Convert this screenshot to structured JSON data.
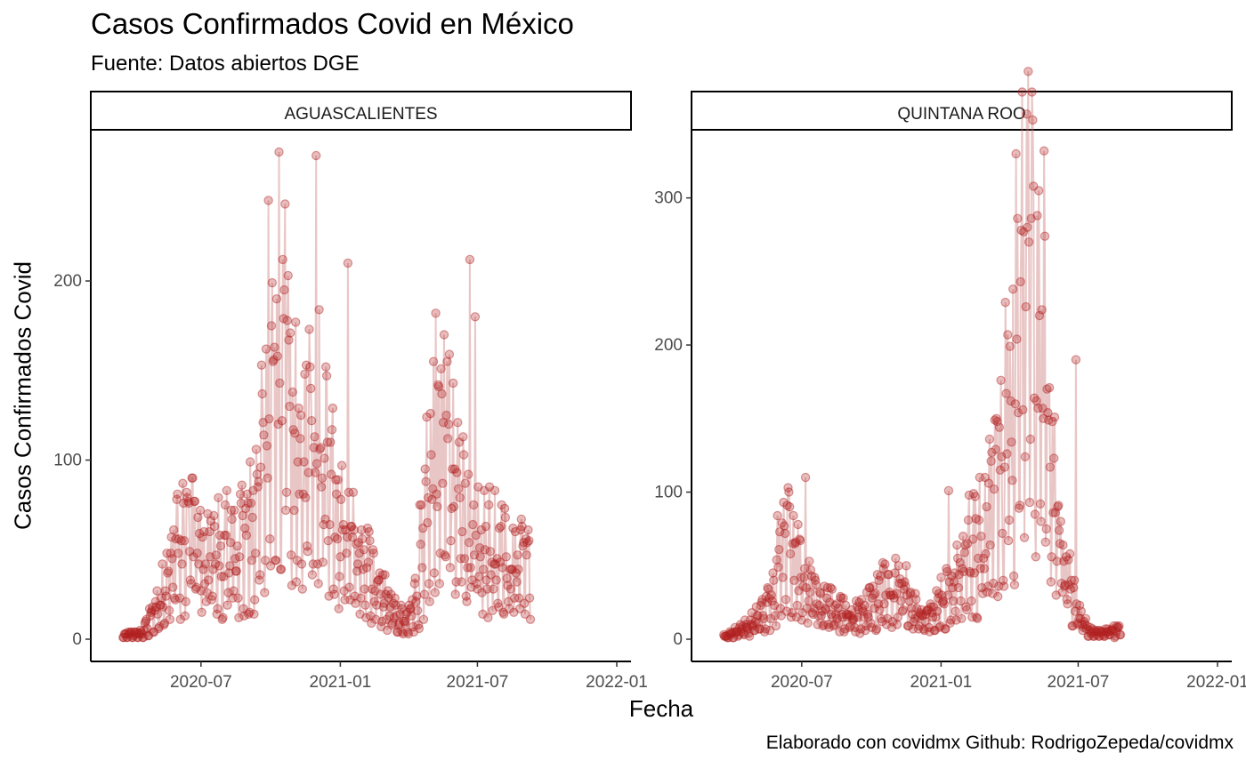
{
  "chart_data": {
    "type": "scatter",
    "title": "Casos Confirmados Covid en México",
    "subtitle": "Fuente: Datos abiertos DGE",
    "xlabel": "Fecha",
    "ylabel": "Casos Confirmados Covid",
    "caption": "Elaborado con covidmx Github: RodrigoZepeda/covidmx",
    "colors": {
      "point": "#b22222",
      "segment": "#c97070",
      "axis": "#000000",
      "tick": "#4d4d4d"
    },
    "grid": false,
    "legend": "none",
    "facets": [
      {
        "name": "AGUASCALIENTES",
        "xlim": [
          "2020-03-01",
          "2022-01-01"
        ],
        "x_ticks": [
          "2020-07",
          "2021-01",
          "2021-07",
          "2022-01"
        ],
        "ylim": [
          0,
          270
        ],
        "y_ticks": [
          0,
          100,
          200
        ],
        "x_start": "2020-03-20",
        "points_per_week": 7,
        "weekly_mean": [
          2,
          3,
          3,
          4,
          8,
          14,
          22,
          30,
          38,
          48,
          56,
          62,
          65,
          63,
          58,
          55,
          52,
          52,
          55,
          58,
          60,
          58,
          60,
          63,
          70,
          85,
          110,
          140,
          175,
          190,
          170,
          150,
          130,
          115,
          115,
          125,
          140,
          130,
          110,
          90,
          80,
          72,
          65,
          60,
          55,
          50,
          45,
          38,
          30,
          25,
          20,
          16,
          14,
          13,
          15,
          25,
          55,
          95,
          120,
          130,
          120,
          110,
          100,
          90,
          80,
          70,
          65,
          60,
          58,
          60,
          58,
          55,
          52,
          48,
          50,
          52,
          50
        ],
        "peaks": [
          [
            36,
            270
          ],
          [
            27,
            245
          ],
          [
            42,
            210
          ],
          [
            65,
            212
          ],
          [
            66,
            180
          ]
        ]
      },
      {
        "name": "QUINTANA ROO",
        "xlim": [
          "2020-03-01",
          "2022-01-01"
        ],
        "x_ticks": [
          "2020-07",
          "2021-01",
          "2021-07",
          "2022-01"
        ],
        "ylim": [
          0,
          330
        ],
        "y_ticks": [
          0,
          100,
          200,
          300
        ],
        "x_start": "2020-03-20",
        "points_per_week": 7,
        "weekly_mean": [
          2,
          4,
          6,
          8,
          10,
          13,
          16,
          20,
          28,
          40,
          58,
          70,
          72,
          65,
          55,
          45,
          38,
          32,
          28,
          25,
          25,
          22,
          20,
          18,
          18,
          20,
          22,
          25,
          30,
          35,
          38,
          40,
          42,
          40,
          35,
          28,
          22,
          20,
          20,
          22,
          25,
          30,
          38,
          45,
          55,
          62,
          68,
          72,
          78,
          85,
          95,
          110,
          130,
          160,
          190,
          230,
          260,
          275,
          260,
          230,
          190,
          150,
          110,
          80,
          60,
          45,
          30,
          18,
          10,
          6,
          5,
          5,
          6,
          6,
          7
        ],
        "peaks": [
          [
            60,
            332
          ],
          [
            59,
            305
          ],
          [
            15,
            110
          ],
          [
            42,
            101
          ],
          [
            66,
            190
          ]
        ]
      }
    ]
  }
}
